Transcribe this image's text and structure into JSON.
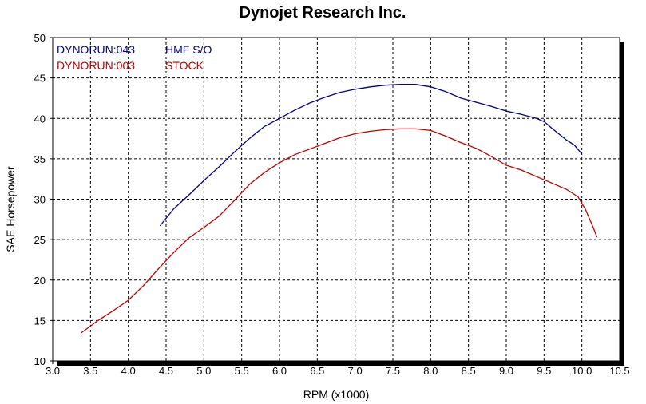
{
  "chart_data": {
    "type": "line",
    "title": "Dynojet Research Inc.",
    "xlabel": "RPM (x1000)",
    "ylabel": "SAE Horsepower",
    "xlim": [
      3.0,
      10.5
    ],
    "ylim": [
      10,
      50
    ],
    "xticks": [
      "3.0",
      "3.5",
      "4.0",
      "4.5",
      "5.0",
      "5.5",
      "6.0",
      "6.5",
      "7.0",
      "7.5",
      "8.0",
      "8.5",
      "9.0",
      "9.5",
      "10.0",
      "10.5"
    ],
    "yticks": [
      "10",
      "15",
      "20",
      "25",
      "30",
      "35",
      "40",
      "45",
      "50"
    ],
    "grid": true,
    "legend_position": "top-left",
    "series": [
      {
        "name": "DYNORUN:043",
        "label": "HMF S/O",
        "color": "#000080",
        "x": [
          4.42,
          4.6,
          4.8,
          5.0,
          5.2,
          5.4,
          5.6,
          5.8,
          6.0,
          6.2,
          6.4,
          6.6,
          6.8,
          7.0,
          7.2,
          7.4,
          7.6,
          7.8,
          8.0,
          8.2,
          8.4,
          8.6,
          8.8,
          9.0,
          9.2,
          9.4,
          9.5,
          9.6,
          9.8,
          9.9,
          10.0
        ],
        "y": [
          26.7,
          28.8,
          30.5,
          32.3,
          34.0,
          35.8,
          37.5,
          39.0,
          40.0,
          41.0,
          41.9,
          42.6,
          43.2,
          43.6,
          43.9,
          44.1,
          44.2,
          44.2,
          43.9,
          43.3,
          42.5,
          42.0,
          41.5,
          40.9,
          40.5,
          40.0,
          39.6,
          38.8,
          37.3,
          36.7,
          35.6
        ]
      },
      {
        "name": "DYNORUN:003",
        "label": "STOCK",
        "color": "#c00000",
        "x": [
          3.38,
          3.6,
          3.8,
          4.0,
          4.2,
          4.4,
          4.6,
          4.8,
          5.0,
          5.2,
          5.4,
          5.6,
          5.8,
          6.0,
          6.2,
          6.4,
          6.6,
          6.8,
          7.0,
          7.2,
          7.4,
          7.6,
          7.8,
          8.0,
          8.2,
          8.4,
          8.6,
          8.8,
          9.0,
          9.2,
          9.4,
          9.6,
          9.8,
          9.95,
          10.05,
          10.15,
          10.2
        ],
        "y": [
          13.5,
          15.0,
          16.2,
          17.5,
          19.3,
          21.4,
          23.4,
          25.2,
          26.5,
          27.9,
          29.8,
          31.8,
          33.3,
          34.5,
          35.5,
          36.2,
          36.9,
          37.6,
          38.1,
          38.4,
          38.6,
          38.7,
          38.7,
          38.5,
          37.8,
          37.0,
          36.3,
          35.3,
          34.2,
          33.6,
          32.8,
          32.0,
          31.2,
          30.3,
          28.7,
          26.5,
          25.3
        ]
      }
    ]
  }
}
